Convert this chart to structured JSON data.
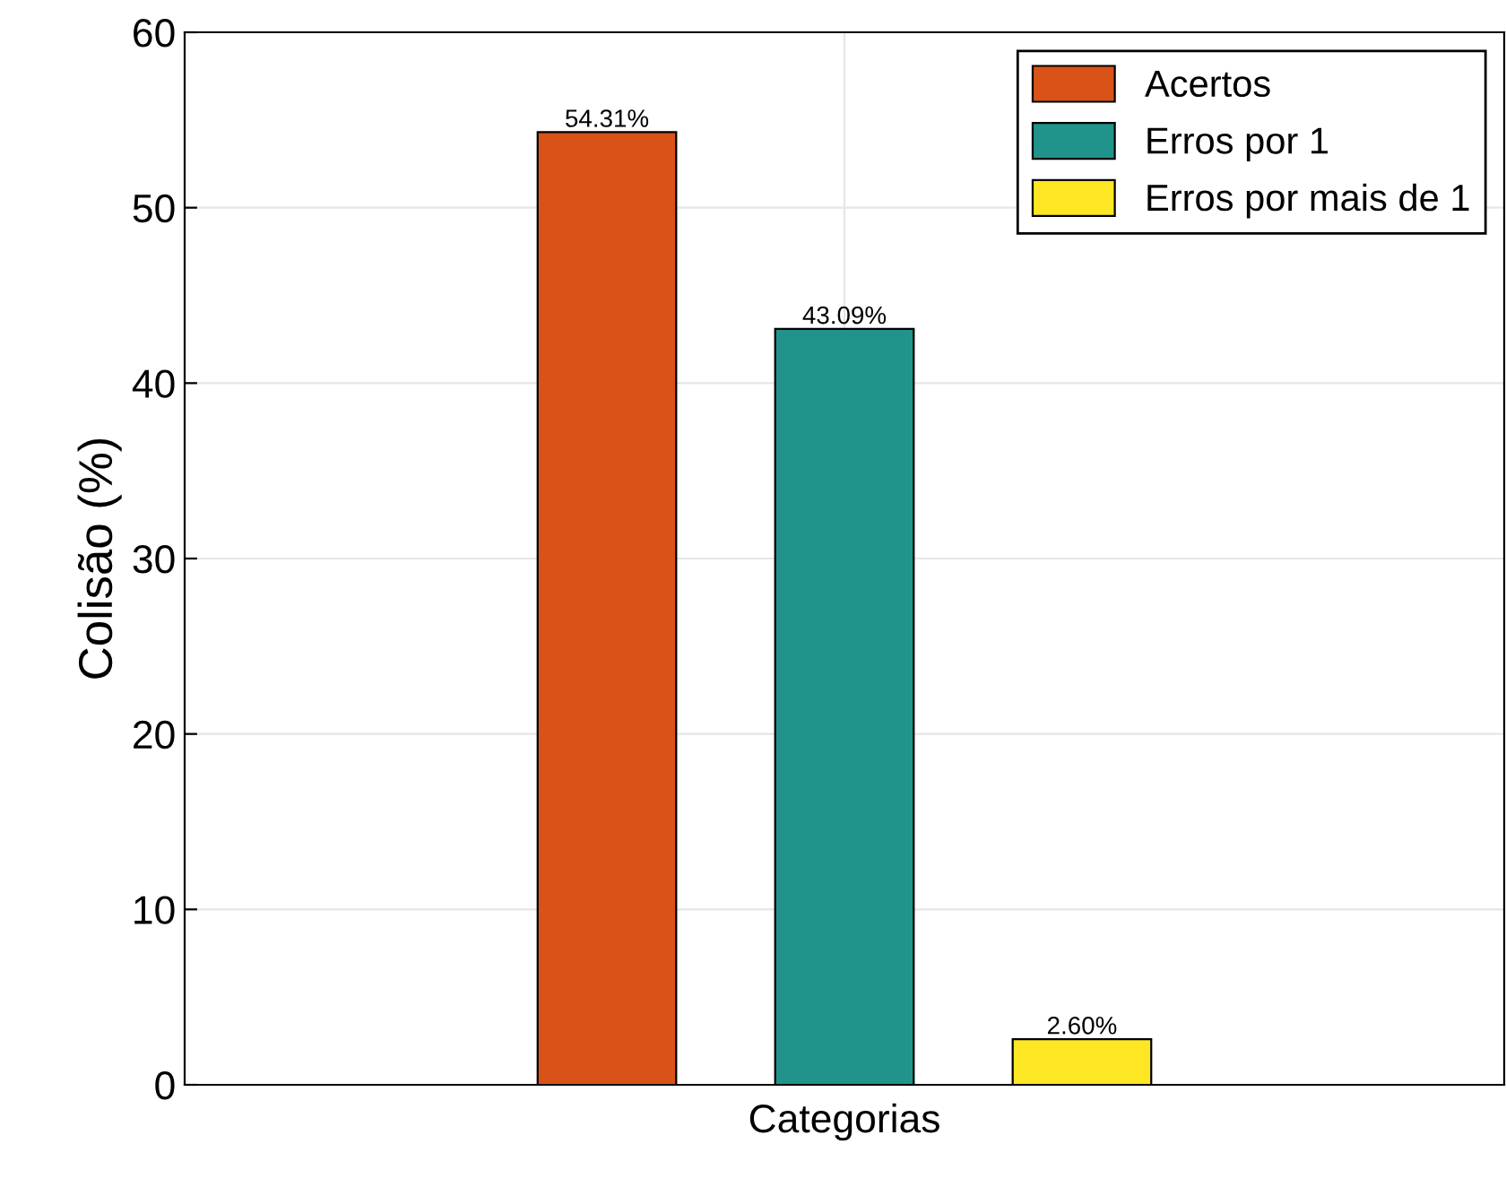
{
  "chart_data": {
    "type": "bar",
    "xlabel": "Categorias",
    "ylabel": "Colisão (%)",
    "categories": [
      null
    ],
    "series": [
      {
        "name": "Acertos",
        "color": "#d95319",
        "values": [
          54.31
        ],
        "value_labels": [
          "54.31%"
        ]
      },
      {
        "name": "Erros por 1",
        "color": "#20948b",
        "values": [
          43.09
        ],
        "value_labels": [
          "43.09%"
        ]
      },
      {
        "name": "Erros por mais de 1",
        "color": "#fde725",
        "values": [
          2.6
        ],
        "value_labels": [
          "2.60%"
        ]
      }
    ],
    "ylim": [
      0,
      60
    ],
    "yticks": [
      0,
      10,
      20,
      30,
      40,
      50,
      60
    ],
    "grid": true,
    "legend": "top right",
    "tick_labels": "y"
  }
}
